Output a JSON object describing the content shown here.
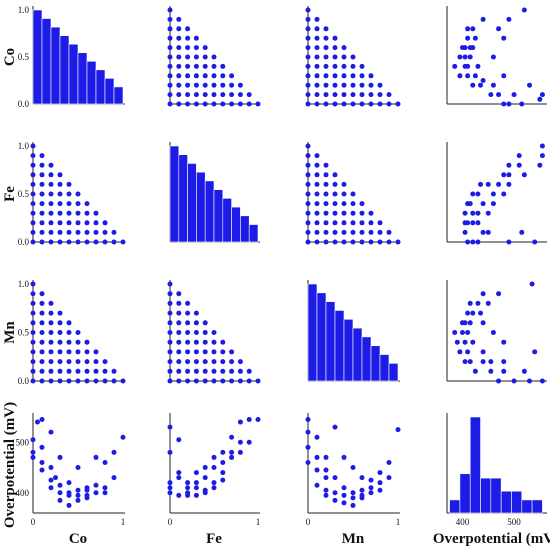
{
  "chart_data": {
    "type": "pairplot",
    "variables": [
      "Co",
      "Fe",
      "Mn",
      "Overpotential (mV)"
    ],
    "color": "#1c1ce6",
    "axes": {
      "composition": {
        "range": [
          0,
          1
        ],
        "ticks": [
          "0.0",
          "0.5",
          "1.0"
        ],
        "xticks": [
          "0",
          "1"
        ]
      },
      "overpotential": {
        "range": [
          360,
          550
        ],
        "ticks": [
          "400",
          "500"
        ]
      }
    },
    "histograms": [
      {
        "variable": "Co",
        "bin_edges": [
          0,
          0.1,
          0.2,
          0.3,
          0.4,
          0.5,
          0.6,
          0.7,
          0.8,
          0.9,
          1.0
        ],
        "counts": [
          11,
          10,
          9,
          8,
          7,
          6,
          5,
          4,
          3,
          2
        ]
      },
      {
        "variable": "Fe",
        "bin_edges": [
          0,
          0.1,
          0.2,
          0.3,
          0.4,
          0.5,
          0.6,
          0.7,
          0.8,
          0.9,
          1.0
        ],
        "counts": [
          11,
          10,
          9,
          8,
          7,
          6,
          5,
          4,
          3,
          2
        ]
      },
      {
        "variable": "Mn",
        "bin_edges": [
          0,
          0.1,
          0.2,
          0.3,
          0.4,
          0.5,
          0.6,
          0.7,
          0.8,
          0.9,
          1.0
        ],
        "counts": [
          11,
          10,
          9,
          8,
          7,
          6,
          5,
          4,
          3,
          2
        ]
      },
      {
        "variable": "Overpotential (mV)",
        "bin_edges": [
          375,
          395,
          415,
          435,
          455,
          475,
          495,
          515,
          535,
          555
        ],
        "counts": [
          3,
          9,
          22,
          8,
          8,
          5,
          5,
          3,
          3
        ]
      }
    ],
    "overpotential_vs_co": [
      [
        0.0,
        505
      ],
      [
        0.0,
        480
      ],
      [
        0.0,
        470
      ],
      [
        0.1,
        545
      ],
      [
        0.1,
        490
      ],
      [
        0.1,
        460
      ],
      [
        0.1,
        445
      ],
      [
        0.2,
        520
      ],
      [
        0.2,
        450
      ],
      [
        0.2,
        425
      ],
      [
        0.2,
        410
      ],
      [
        0.3,
        470
      ],
      [
        0.3,
        415
      ],
      [
        0.3,
        400
      ],
      [
        0.3,
        385
      ],
      [
        0.4,
        420
      ],
      [
        0.4,
        400
      ],
      [
        0.4,
        395
      ],
      [
        0.4,
        375
      ],
      [
        0.5,
        450
      ],
      [
        0.5,
        405
      ],
      [
        0.5,
        395
      ],
      [
        0.5,
        385
      ],
      [
        0.6,
        410
      ],
      [
        0.6,
        405
      ],
      [
        0.6,
        395
      ],
      [
        0.6,
        390
      ],
      [
        0.7,
        470
      ],
      [
        0.7,
        415
      ],
      [
        0.7,
        400
      ],
      [
        0.8,
        460
      ],
      [
        0.8,
        410
      ],
      [
        0.8,
        400
      ],
      [
        0.9,
        480
      ],
      [
        0.9,
        430
      ],
      [
        1.0,
        510
      ],
      [
        0.05,
        540
      ],
      [
        0.25,
        430
      ]
    ],
    "overpotential_vs_fe": [
      [
        0.0,
        530
      ],
      [
        0.0,
        480
      ],
      [
        0.0,
        420
      ],
      [
        0.0,
        410
      ],
      [
        0.0,
        400
      ],
      [
        0.1,
        505
      ],
      [
        0.1,
        440
      ],
      [
        0.1,
        430
      ],
      [
        0.1,
        395
      ],
      [
        0.2,
        420
      ],
      [
        0.2,
        410
      ],
      [
        0.2,
        400
      ],
      [
        0.2,
        395
      ],
      [
        0.3,
        440
      ],
      [
        0.3,
        420
      ],
      [
        0.3,
        410
      ],
      [
        0.3,
        395
      ],
      [
        0.4,
        450
      ],
      [
        0.4,
        430
      ],
      [
        0.4,
        405
      ],
      [
        0.4,
        400
      ],
      [
        0.5,
        470
      ],
      [
        0.5,
        450
      ],
      [
        0.5,
        420
      ],
      [
        0.5,
        410
      ],
      [
        0.6,
        480
      ],
      [
        0.6,
        460
      ],
      [
        0.6,
        440
      ],
      [
        0.6,
        425
      ],
      [
        0.7,
        510
      ],
      [
        0.7,
        480
      ],
      [
        0.7,
        470
      ],
      [
        0.8,
        540
      ],
      [
        0.8,
        500
      ],
      [
        0.8,
        480
      ],
      [
        0.9,
        545
      ],
      [
        0.9,
        500
      ],
      [
        1.0,
        545
      ]
    ],
    "overpotential_vs_mn": [
      [
        0.0,
        545
      ],
      [
        0.0,
        520
      ],
      [
        0.0,
        490
      ],
      [
        0.0,
        460
      ],
      [
        0.1,
        510
      ],
      [
        0.1,
        470
      ],
      [
        0.1,
        445
      ],
      [
        0.1,
        415
      ],
      [
        0.2,
        470
      ],
      [
        0.2,
        445
      ],
      [
        0.2,
        430
      ],
      [
        0.2,
        405
      ],
      [
        0.2,
        395
      ],
      [
        0.3,
        530
      ],
      [
        0.3,
        430
      ],
      [
        0.3,
        400
      ],
      [
        0.3,
        385
      ],
      [
        0.4,
        470
      ],
      [
        0.4,
        410
      ],
      [
        0.4,
        395
      ],
      [
        0.4,
        380
      ],
      [
        0.5,
        450
      ],
      [
        0.5,
        400
      ],
      [
        0.5,
        390
      ],
      [
        0.5,
        375
      ],
      [
        0.6,
        430
      ],
      [
        0.6,
        405
      ],
      [
        0.6,
        395
      ],
      [
        0.6,
        390
      ],
      [
        0.7,
        425
      ],
      [
        0.7,
        410
      ],
      [
        0.7,
        400
      ],
      [
        0.8,
        440
      ],
      [
        0.8,
        420
      ],
      [
        0.8,
        405
      ],
      [
        0.9,
        460
      ],
      [
        0.9,
        430
      ],
      [
        1.0,
        525
      ]
    ]
  }
}
